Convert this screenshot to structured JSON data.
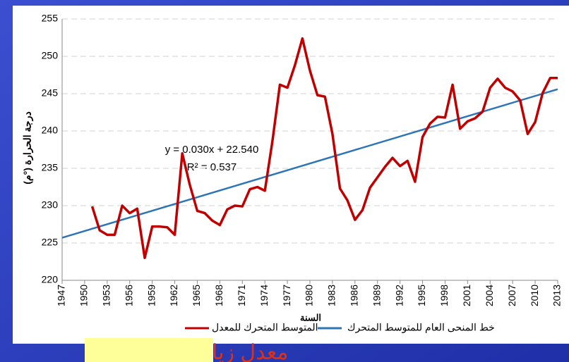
{
  "chart_data": {
    "type": "line",
    "y_axis_label": "درجة الحرارة (°م)",
    "x_axis_label": "السنة",
    "annotations": [
      "y = 0.030x + 22.540",
      "R² = 0.537"
    ],
    "callout": "معدل زيا",
    "xlim": [
      1947,
      2013
    ],
    "xticks": [
      1947,
      1950,
      1953,
      1956,
      1959,
      1962,
      1965,
      1968,
      1971,
      1974,
      1977,
      1980,
      1983,
      1986,
      1989,
      1992,
      1995,
      1998,
      2001,
      2004,
      2007,
      2010,
      2013
    ],
    "ylim": [
      220,
      255
    ],
    "yticks": [
      220,
      225,
      230,
      235,
      240,
      245,
      250,
      255
    ],
    "grid": true,
    "series": [
      {
        "name": "المتوسط المتحرك للمعدل",
        "color": "#c00000",
        "x": [
          1951,
          1952,
          1953,
          1954,
          1955,
          1956,
          1957,
          1958,
          1959,
          1960,
          1961,
          1962,
          1963,
          1964,
          1965,
          1966,
          1967,
          1968,
          1969,
          1970,
          1971,
          1972,
          1973,
          1974,
          1975,
          1976,
          1977,
          1978,
          1979,
          1980,
          1981,
          1982,
          1983,
          1984,
          1985,
          1986,
          1987,
          1988,
          1989,
          1990,
          1991,
          1992,
          1993,
          1994,
          1995,
          1996,
          1997,
          1998,
          1999,
          2000,
          2001,
          2002,
          2003,
          2004,
          2005,
          2006,
          2007,
          2008,
          2009,
          2010,
          2011,
          2012,
          2013
        ],
        "values": [
          229.9,
          226.7,
          226.1,
          226.1,
          230.0,
          229.0,
          229.6,
          223.0,
          227.2,
          227.2,
          227.1,
          226.1,
          237.0,
          232.8,
          229.3,
          229.0,
          228.0,
          227.4,
          229.5,
          230.0,
          229.9,
          232.2,
          232.5,
          232.0,
          238.6,
          246.2,
          245.8,
          248.8,
          252.4,
          248.1,
          244.8,
          244.6,
          239.6,
          232.3,
          230.7,
          228.1,
          229.4,
          232.4,
          233.8,
          235.2,
          236.4,
          235.3,
          236.0,
          233.2,
          239.2,
          241.0,
          241.9,
          241.8,
          246.2,
          240.3,
          241.3,
          241.7,
          242.6,
          245.8,
          247.0,
          245.8,
          245.3,
          244.1,
          239.6,
          241.2,
          245.1,
          247.1,
          247.1
        ]
      },
      {
        "name": "خط المنحى العام للمتوسط المتحرك",
        "color": "#2e75b6",
        "x": [
          1947,
          2013
        ],
        "values": [
          225.7,
          245.6
        ]
      }
    ]
  }
}
